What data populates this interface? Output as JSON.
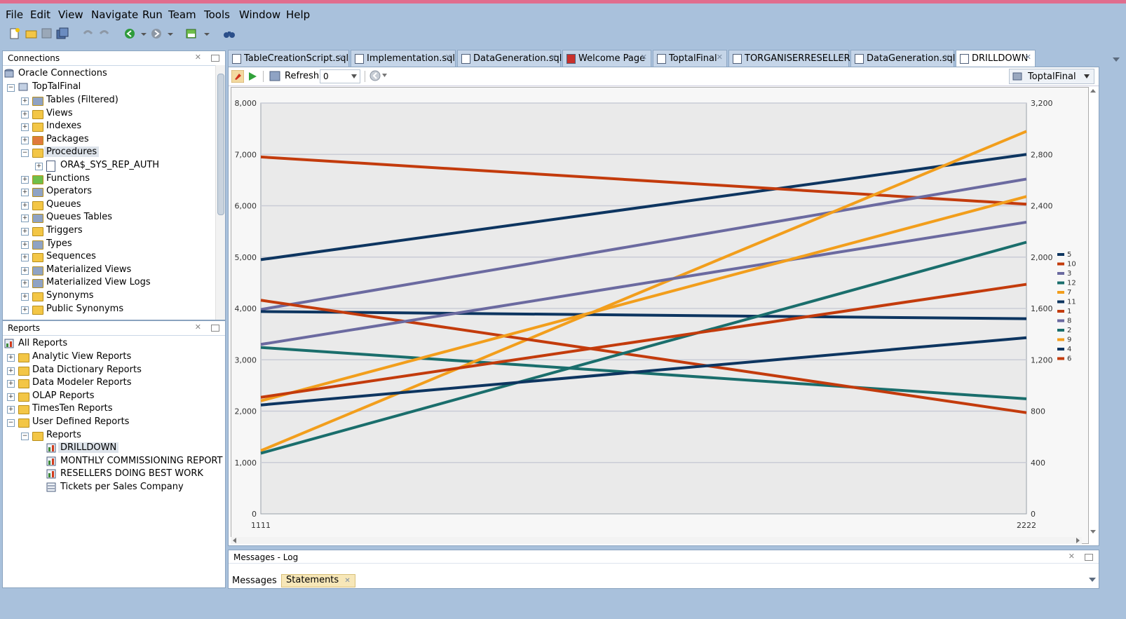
{
  "menu": [
    "File",
    "Edit",
    "View",
    "Navigate",
    "Run",
    "Team",
    "Tools",
    "Window",
    "Help"
  ],
  "connections": {
    "title": "Connections",
    "root": "Oracle Connections",
    "connection": "TopTalFinal",
    "items": [
      "Tables (Filtered)",
      "Views",
      "Indexes",
      "Packages",
      "Procedures",
      "Functions",
      "Operators",
      "Queues",
      "Queues Tables",
      "Triggers",
      "Types",
      "Sequences",
      "Materialized Views",
      "Materialized View Logs",
      "Synonyms",
      "Public Synonyms"
    ],
    "procedure_child": "ORA$_SYS_REP_AUTH"
  },
  "reports": {
    "title": "Reports",
    "root": "All Reports",
    "groups": [
      "Analytic View Reports",
      "Data Dictionary Reports",
      "Data Modeler Reports",
      "OLAP Reports",
      "TimesTen Reports",
      "User Defined Reports"
    ],
    "subfolder": "Reports",
    "items": [
      "DRILLDOWN",
      "MONTHLY COMMISSIONING REPORT",
      "RESELLERS DOING BEST WORK",
      "Tickets per Sales Company"
    ]
  },
  "tabs": [
    "TableCreationScript.sql",
    "Implementation.sql",
    "DataGeneration.sql",
    "Welcome Page",
    "ToptalFinal",
    "TORGANISERRESELLER",
    "DataGeneration.sql",
    "DRILLDOWN"
  ],
  "editor": {
    "refresh_label": "Refresh:",
    "refresh_value": "0",
    "connection_select": "ToptalFinal"
  },
  "messages": {
    "title": "Messages - Log",
    "tab_messages": "Messages",
    "tab_statements": "Statements"
  },
  "chart_data": {
    "type": "line",
    "x": [
      "1111",
      "2222"
    ],
    "ylim_left": [
      0,
      8000
    ],
    "ylim_right": [
      0,
      3200
    ],
    "yticks_left": [
      "0",
      "1,000",
      "2,000",
      "3,000",
      "4,000",
      "5,000",
      "6,000",
      "7,000",
      "8,000"
    ],
    "yticks_right": [
      "0",
      "400",
      "800",
      "1,200",
      "1,600",
      "2,000",
      "2,400",
      "2,800",
      "3,200"
    ],
    "grid": true,
    "legend_position": "right",
    "series": [
      {
        "name": "5",
        "color": "#0d3560",
        "values": [
          4950,
          7000
        ]
      },
      {
        "name": "10",
        "color": "#c33b0c",
        "values": [
          6950,
          6030
        ]
      },
      {
        "name": "3",
        "color": "#6b6aa0",
        "values": [
          3980,
          6520
        ]
      },
      {
        "name": "12",
        "color": "#1a6e6c",
        "values": [
          3240,
          2240
        ]
      },
      {
        "name": "7",
        "color": "#f29e1c",
        "values": [
          1230,
          7450
        ]
      },
      {
        "name": "11",
        "color": "#0d3560",
        "values": [
          3940,
          3800
        ]
      },
      {
        "name": "1",
        "color": "#c33b0c",
        "values": [
          4160,
          1970
        ]
      },
      {
        "name": "8",
        "color": "#6b6aa0",
        "values": [
          3300,
          5680
        ]
      },
      {
        "name": "2",
        "color": "#1a6e6c",
        "values": [
          1180,
          5290
        ]
      },
      {
        "name": "9",
        "color": "#f29e1c",
        "values": [
          2200,
          6180
        ]
      },
      {
        "name": "4",
        "color": "#0d3560",
        "values": [
          2120,
          3430
        ]
      },
      {
        "name": "6",
        "color": "#c33b0c",
        "values": [
          2270,
          4470
        ]
      }
    ]
  }
}
